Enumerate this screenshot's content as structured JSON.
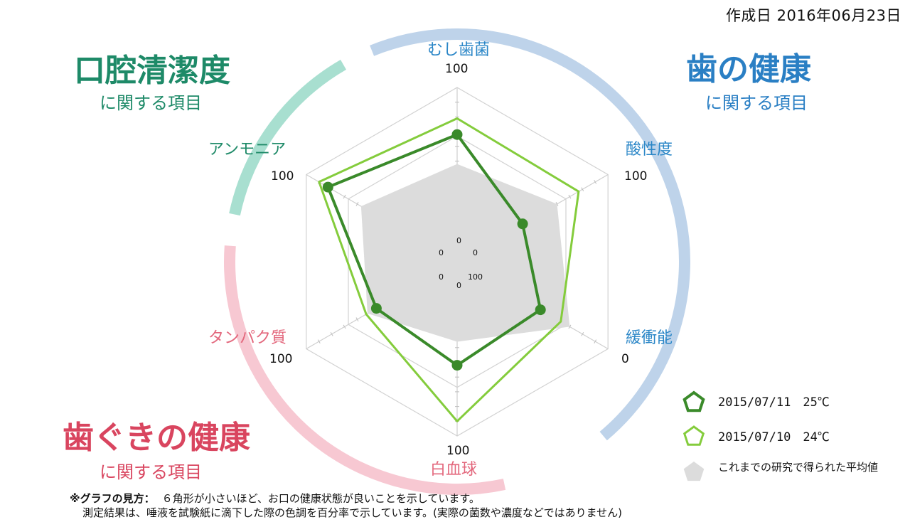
{
  "header": {
    "created_date": "作成日 2016年06月23日"
  },
  "groups": {
    "oral_cleanliness": {
      "title": "口腔清潔度",
      "subtitle": "に関する項目",
      "color": "#1e8a68",
      "arc_color": "#a8dfd0"
    },
    "teeth_health": {
      "title": "歯の健康",
      "subtitle": "に関する項目",
      "color": "#2a7fc4",
      "arc_color": "#bed3ea"
    },
    "gum_health": {
      "title": "歯ぐきの健康",
      "subtitle": "に関する項目",
      "color": "#d9455f",
      "arc_color": "#f7c8d2"
    }
  },
  "chart_data": {
    "type": "radar",
    "axes": [
      {
        "label": "むし歯菌",
        "max_label": "100",
        "inner_label": "0",
        "color": "#2a86c7"
      },
      {
        "label": "酸性度",
        "max_label": "100",
        "inner_label": "0",
        "color": "#2a86c7"
      },
      {
        "label": "緩衝能",
        "max_label": "0",
        "inner_label": "100",
        "color": "#2a86c7"
      },
      {
        "label": "白血球",
        "max_label": "100",
        "inner_label": "0",
        "color": "#e3687d"
      },
      {
        "label": "タンパク質",
        "max_label": "100",
        "inner_label": "0",
        "color": "#e3687d"
      },
      {
        "label": "アンモニア",
        "max_label": "100",
        "inner_label": "0",
        "color": "#1e8a68"
      }
    ],
    "series": [
      {
        "name": "2015/07/11　25℃",
        "values": [
          68,
          33,
          47,
          52,
          45,
          83
        ],
        "color": "#3a8a2a",
        "markers": true
      },
      {
        "name": "2015/07/10　24℃",
        "values": [
          79,
          77,
          63,
          90,
          53,
          90
        ],
        "color": "#84cc3c",
        "markers": false
      }
    ],
    "average": {
      "name": "これまでの研究で得られた平均値",
      "values": [
        48,
        60,
        70,
        36,
        52,
        57
      ],
      "color": "#dcdcdc"
    }
  },
  "notes": {
    "heading": "※グラフの見方：",
    "line1": "６角形が小さいほど、お口の健康状態が良いことを示しています。",
    "line2": "測定結果は、唾液を試験紙に滴下した際の色調を百分率で示しています。(実際の菌数や濃度などではありません)"
  }
}
